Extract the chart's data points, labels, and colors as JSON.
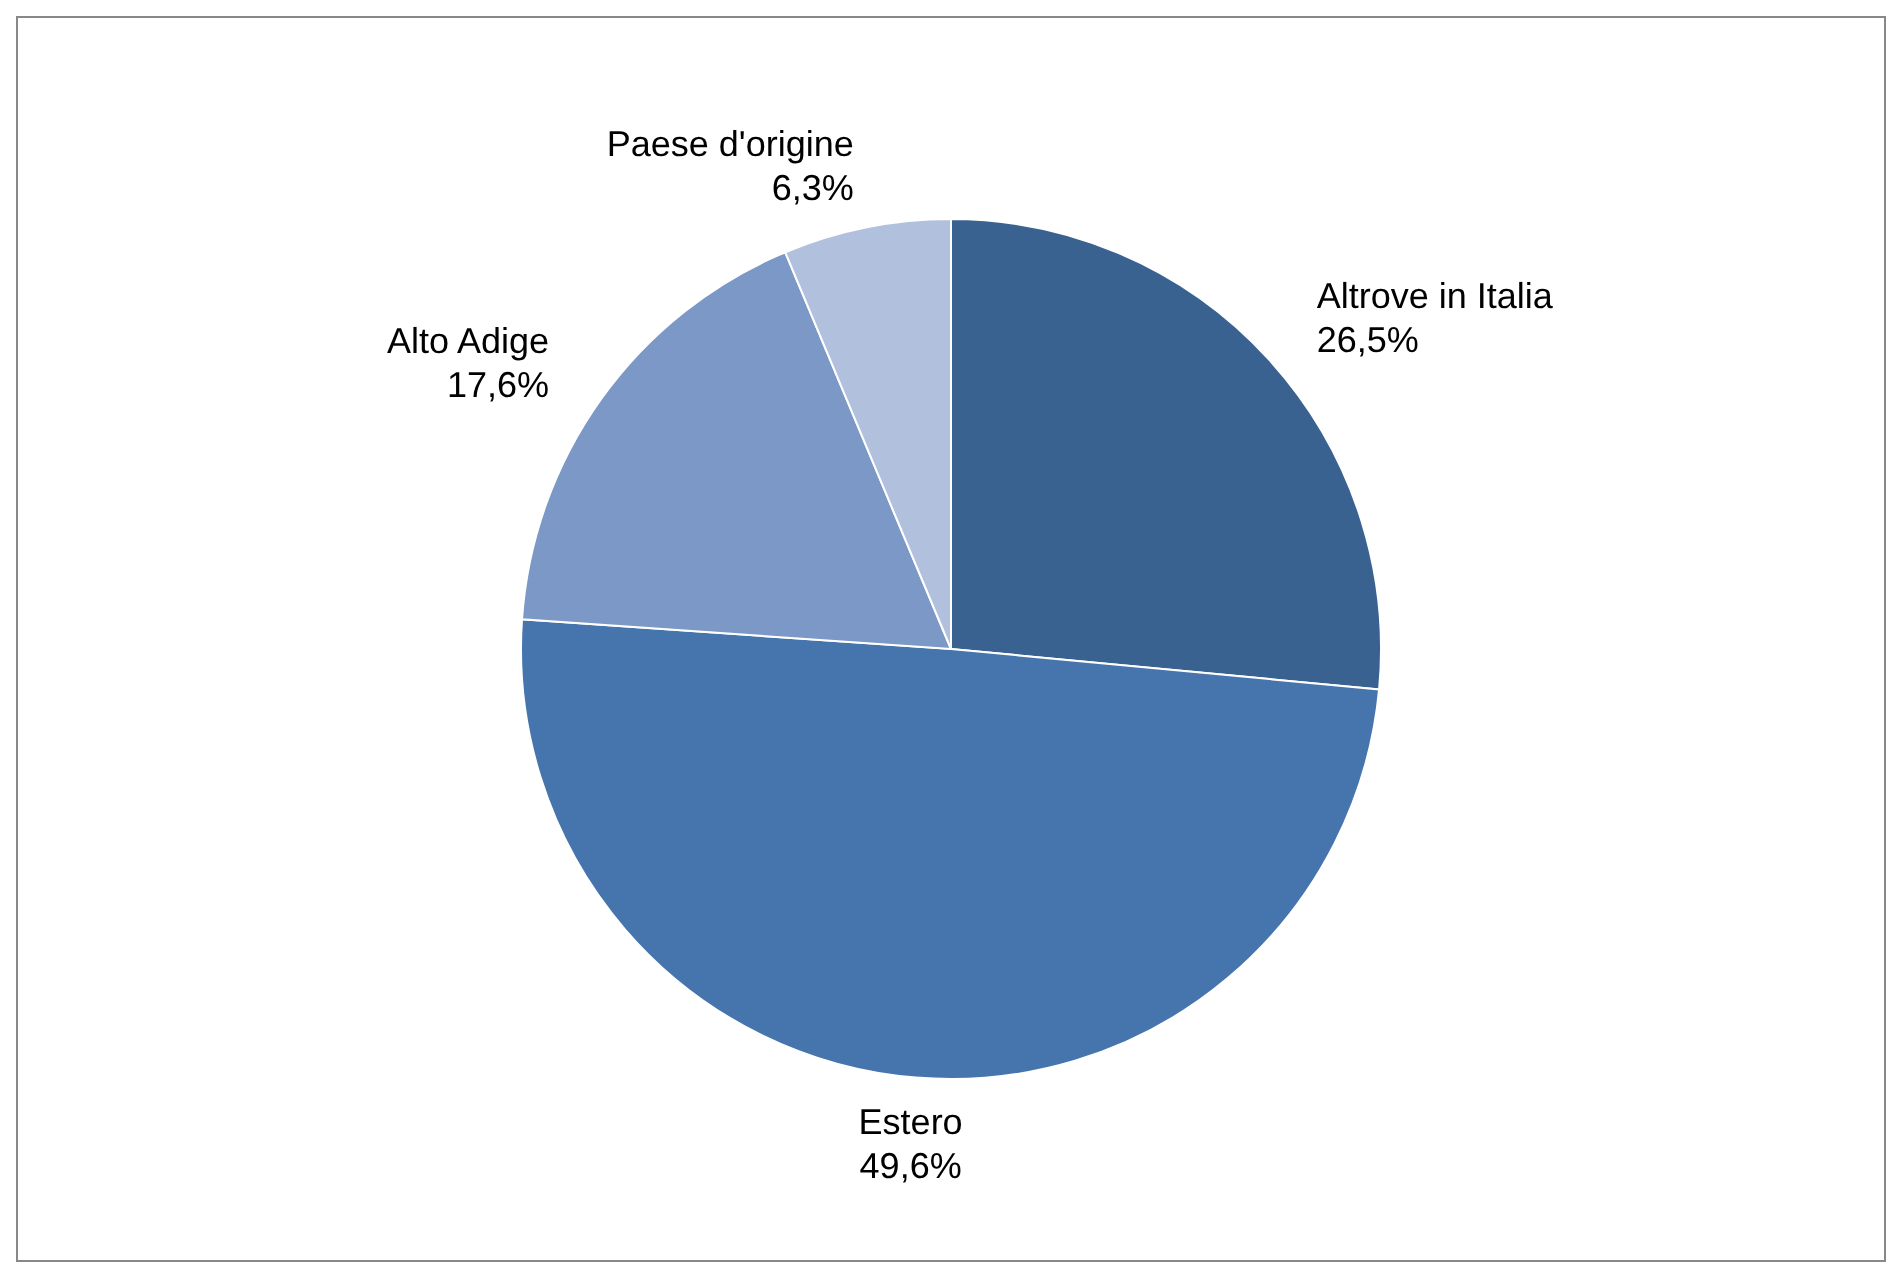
{
  "chart_data": {
    "type": "pie",
    "categories": [
      "Altrove in Italia",
      "Estero",
      "Alto Adige",
      "Paese d'origine"
    ],
    "values": [
      26.5,
      49.6,
      17.6,
      6.3
    ],
    "colors": [
      "#3a6291",
      "#4675ad",
      "#7b98c6",
      "#b1c0dd"
    ],
    "value_labels": [
      "26,5%",
      "49,6%",
      "17,6%",
      "6,3%"
    ],
    "legend": false
  }
}
